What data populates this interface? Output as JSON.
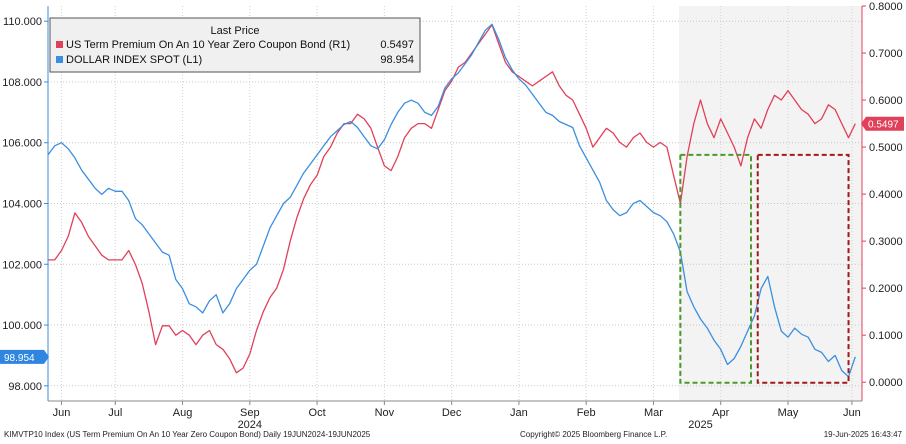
{
  "chart_data": {
    "type": "line",
    "legend": {
      "title": "Last Price",
      "entries": [
        {
          "name": "US Term Premium On An 10 Year Zero Coupon Bond  (R1)",
          "last": "0.5497",
          "color": "#e0405a",
          "axis": "right"
        },
        {
          "name": "DOLLAR INDEX SPOT  (L1)",
          "last": "98.954",
          "color": "#3b8ee0",
          "axis": "left"
        }
      ]
    },
    "left_axis": {
      "min": 97.5,
      "max": 110.5,
      "ticks": [
        "110.000",
        "108.000",
        "106.000",
        "104.000",
        "102.000",
        "100.000",
        "98.000"
      ],
      "tick_values": [
        110,
        108,
        106,
        104,
        102,
        100,
        98
      ]
    },
    "right_axis": {
      "min": -0.04,
      "max": 0.8,
      "ticks": [
        "0.8000",
        "0.7000",
        "0.6000",
        "0.5000",
        "0.4000",
        "0.3000",
        "0.2000",
        "0.1000",
        "0.0000"
      ],
      "tick_values": [
        0.8,
        0.7,
        0.6,
        0.5,
        0.4,
        0.3,
        0.2,
        0.1,
        0.0
      ]
    },
    "x_labels": [
      "Jun",
      "Jul",
      "Aug",
      "Sep",
      "Oct",
      "Nov",
      "Dec",
      "Jan",
      "Feb",
      "Mar",
      "Apr",
      "May",
      "Jun"
    ],
    "x_label_pos": [
      0.2,
      1.0,
      2.0,
      3.0,
      4.0,
      5.0,
      6.0,
      7.0,
      8.0,
      9.0,
      10.0,
      11.0,
      11.95
    ],
    "year_labels": [
      {
        "text": "2024",
        "pos": 3.0
      },
      {
        "text": "2025",
        "pos": 9.7
      }
    ],
    "x_range": [
      0,
      12.1
    ],
    "last_value_tags": {
      "left": "98.954",
      "right": "0.5497"
    },
    "shaded_region": [
      9.38,
      12.1
    ],
    "highlight_boxes": [
      {
        "x": [
          9.4,
          10.45
        ],
        "y_left": [
          98.1,
          105.6
        ],
        "color": "#4a9a2a",
        "label": "green"
      },
      {
        "x": [
          10.55,
          11.9
        ],
        "y_left": [
          98.1,
          105.6
        ],
        "color": "#a01a1a",
        "label": "darkred"
      }
    ],
    "series": [
      {
        "name": "DOLLAR INDEX SPOT",
        "axis": "left",
        "color": "#3b8ee0",
        "x": [
          0.0,
          0.1,
          0.2,
          0.3,
          0.4,
          0.5,
          0.6,
          0.7,
          0.8,
          0.9,
          1.0,
          1.1,
          1.2,
          1.3,
          1.4,
          1.5,
          1.6,
          1.7,
          1.8,
          1.9,
          2.0,
          2.1,
          2.2,
          2.3,
          2.4,
          2.5,
          2.6,
          2.7,
          2.8,
          2.9,
          3.0,
          3.1,
          3.2,
          3.3,
          3.4,
          3.5,
          3.6,
          3.7,
          3.8,
          3.9,
          4.0,
          4.1,
          4.2,
          4.3,
          4.4,
          4.5,
          4.6,
          4.7,
          4.8,
          4.9,
          5.0,
          5.1,
          5.2,
          5.3,
          5.4,
          5.5,
          5.6,
          5.7,
          5.8,
          5.9,
          6.0,
          6.1,
          6.2,
          6.3,
          6.4,
          6.5,
          6.6,
          6.7,
          6.8,
          6.9,
          7.0,
          7.1,
          7.2,
          7.3,
          7.4,
          7.5,
          7.6,
          7.7,
          7.8,
          7.9,
          8.0,
          8.1,
          8.2,
          8.3,
          8.4,
          8.5,
          8.6,
          8.7,
          8.8,
          8.9,
          9.0,
          9.1,
          9.2,
          9.3,
          9.4,
          9.5,
          9.6,
          9.7,
          9.8,
          9.9,
          10.0,
          10.1,
          10.2,
          10.3,
          10.4,
          10.5,
          10.6,
          10.7,
          10.8,
          10.9,
          11.0,
          11.1,
          11.2,
          11.3,
          11.4,
          11.5,
          11.6,
          11.7,
          11.8,
          11.9,
          12.0
        ],
        "values": [
          105.6,
          105.9,
          106.0,
          105.8,
          105.5,
          105.1,
          104.8,
          104.5,
          104.3,
          104.5,
          104.4,
          104.4,
          104.1,
          103.5,
          103.3,
          103.0,
          102.7,
          102.4,
          102.3,
          101.5,
          101.2,
          100.7,
          100.6,
          100.4,
          100.8,
          101.0,
          100.4,
          100.7,
          101.2,
          101.5,
          101.8,
          102.0,
          102.6,
          103.2,
          103.6,
          104.0,
          104.2,
          104.6,
          105.0,
          105.3,
          105.6,
          105.9,
          106.2,
          106.4,
          106.6,
          106.7,
          106.5,
          106.2,
          105.9,
          105.8,
          106.1,
          106.6,
          107.0,
          107.3,
          107.4,
          107.3,
          107.0,
          106.9,
          107.2,
          107.8,
          108.1,
          108.3,
          108.6,
          108.9,
          109.3,
          109.7,
          109.9,
          109.4,
          108.8,
          108.4,
          108.1,
          107.9,
          107.6,
          107.3,
          107.0,
          106.9,
          106.7,
          106.6,
          106.5,
          105.9,
          105.5,
          105.1,
          104.7,
          104.1,
          103.8,
          103.6,
          103.7,
          104.0,
          104.1,
          103.9,
          103.7,
          103.6,
          103.4,
          103.0,
          102.4,
          101.1,
          100.6,
          100.2,
          99.9,
          99.5,
          99.2,
          98.7,
          98.9,
          99.3,
          99.8,
          100.3,
          101.2,
          101.6,
          100.6,
          99.8,
          99.6,
          99.9,
          99.7,
          99.6,
          99.2,
          99.1,
          98.8,
          99.0,
          98.5,
          98.3,
          98.954
        ]
      },
      {
        "name": "US Term Premium On An 10 Year Zero Coupon Bond",
        "axis": "right",
        "color": "#e0405a",
        "x": [
          0.0,
          0.1,
          0.2,
          0.3,
          0.4,
          0.5,
          0.6,
          0.7,
          0.8,
          0.9,
          1.0,
          1.1,
          1.2,
          1.3,
          1.4,
          1.5,
          1.6,
          1.7,
          1.8,
          1.9,
          2.0,
          2.1,
          2.2,
          2.3,
          2.4,
          2.5,
          2.6,
          2.7,
          2.8,
          2.9,
          3.0,
          3.1,
          3.2,
          3.3,
          3.4,
          3.5,
          3.6,
          3.7,
          3.8,
          3.9,
          4.0,
          4.1,
          4.2,
          4.3,
          4.4,
          4.5,
          4.6,
          4.7,
          4.8,
          4.9,
          5.0,
          5.1,
          5.2,
          5.3,
          5.4,
          5.5,
          5.6,
          5.7,
          5.8,
          5.9,
          6.0,
          6.1,
          6.2,
          6.3,
          6.4,
          6.5,
          6.6,
          6.7,
          6.8,
          6.9,
          7.0,
          7.1,
          7.2,
          7.3,
          7.4,
          7.5,
          7.6,
          7.7,
          7.8,
          7.9,
          8.0,
          8.1,
          8.2,
          8.3,
          8.4,
          8.5,
          8.6,
          8.7,
          8.8,
          8.9,
          9.0,
          9.1,
          9.2,
          9.3,
          9.4,
          9.5,
          9.6,
          9.7,
          9.8,
          9.9,
          10.0,
          10.1,
          10.2,
          10.3,
          10.4,
          10.5,
          10.6,
          10.7,
          10.8,
          10.9,
          11.0,
          11.1,
          11.2,
          11.3,
          11.4,
          11.5,
          11.6,
          11.7,
          11.8,
          11.9,
          12.0
        ],
        "values": [
          0.26,
          0.26,
          0.28,
          0.31,
          0.36,
          0.34,
          0.31,
          0.29,
          0.27,
          0.26,
          0.26,
          0.26,
          0.28,
          0.25,
          0.21,
          0.15,
          0.08,
          0.12,
          0.12,
          0.1,
          0.11,
          0.1,
          0.08,
          0.1,
          0.11,
          0.08,
          0.07,
          0.05,
          0.02,
          0.03,
          0.06,
          0.11,
          0.15,
          0.18,
          0.2,
          0.24,
          0.3,
          0.35,
          0.39,
          0.42,
          0.44,
          0.48,
          0.5,
          0.53,
          0.55,
          0.55,
          0.57,
          0.56,
          0.54,
          0.5,
          0.46,
          0.45,
          0.48,
          0.52,
          0.54,
          0.55,
          0.55,
          0.54,
          0.58,
          0.62,
          0.64,
          0.67,
          0.68,
          0.7,
          0.72,
          0.74,
          0.76,
          0.72,
          0.68,
          0.66,
          0.65,
          0.64,
          0.63,
          0.64,
          0.65,
          0.66,
          0.63,
          0.61,
          0.6,
          0.57,
          0.54,
          0.5,
          0.52,
          0.54,
          0.53,
          0.51,
          0.5,
          0.52,
          0.53,
          0.51,
          0.5,
          0.51,
          0.5,
          0.44,
          0.38,
          0.48,
          0.55,
          0.6,
          0.55,
          0.52,
          0.56,
          0.53,
          0.5,
          0.46,
          0.52,
          0.56,
          0.54,
          0.58,
          0.61,
          0.6,
          0.62,
          0.6,
          0.58,
          0.57,
          0.55,
          0.56,
          0.59,
          0.58,
          0.55,
          0.52,
          0.5497
        ]
      }
    ],
    "footer": {
      "left": "KIMVTP10 Index (US Term Premium On An 10 Year Zero Coupon Bond)  Daily 19JUN2024-19JUN2025",
      "center": "Copyright© 2025 Bloomberg Finance L.P.",
      "right": "19-Jun-2025  16:43:47"
    }
  }
}
